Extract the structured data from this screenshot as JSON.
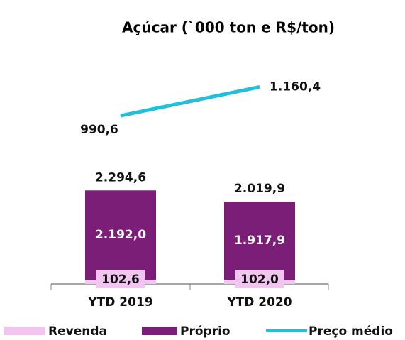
{
  "chart_data": {
    "type": "bar",
    "stacked": true,
    "title": "Açúcar (`000 ton e R$/ton)",
    "categories": [
      "YTD 2019",
      "YTD 2020"
    ],
    "series": [
      {
        "name": "Revenda",
        "color": "#f2c4f0",
        "values": [
          102.6,
          102.0
        ],
        "value_labels": [
          "102,6",
          "102,0"
        ]
      },
      {
        "name": "Próprio",
        "color": "#7a1e78",
        "values": [
          2192.0,
          1917.9
        ],
        "value_labels": [
          "2.192,0",
          "1.917,9"
        ]
      },
      {
        "name": "Preço médio",
        "type": "line",
        "axis": "y2",
        "color": "#1ec0de",
        "values": [
          990.6,
          1160.4
        ],
        "value_labels": [
          "990,6",
          "1.160,4"
        ]
      }
    ],
    "totals": [
      2294.6,
      2019.9
    ],
    "totals_labels": [
      "2.294,6",
      "2.019,9"
    ],
    "ylim": [
      0,
      5000
    ],
    "y2lim": [
      0,
      1200
    ]
  }
}
